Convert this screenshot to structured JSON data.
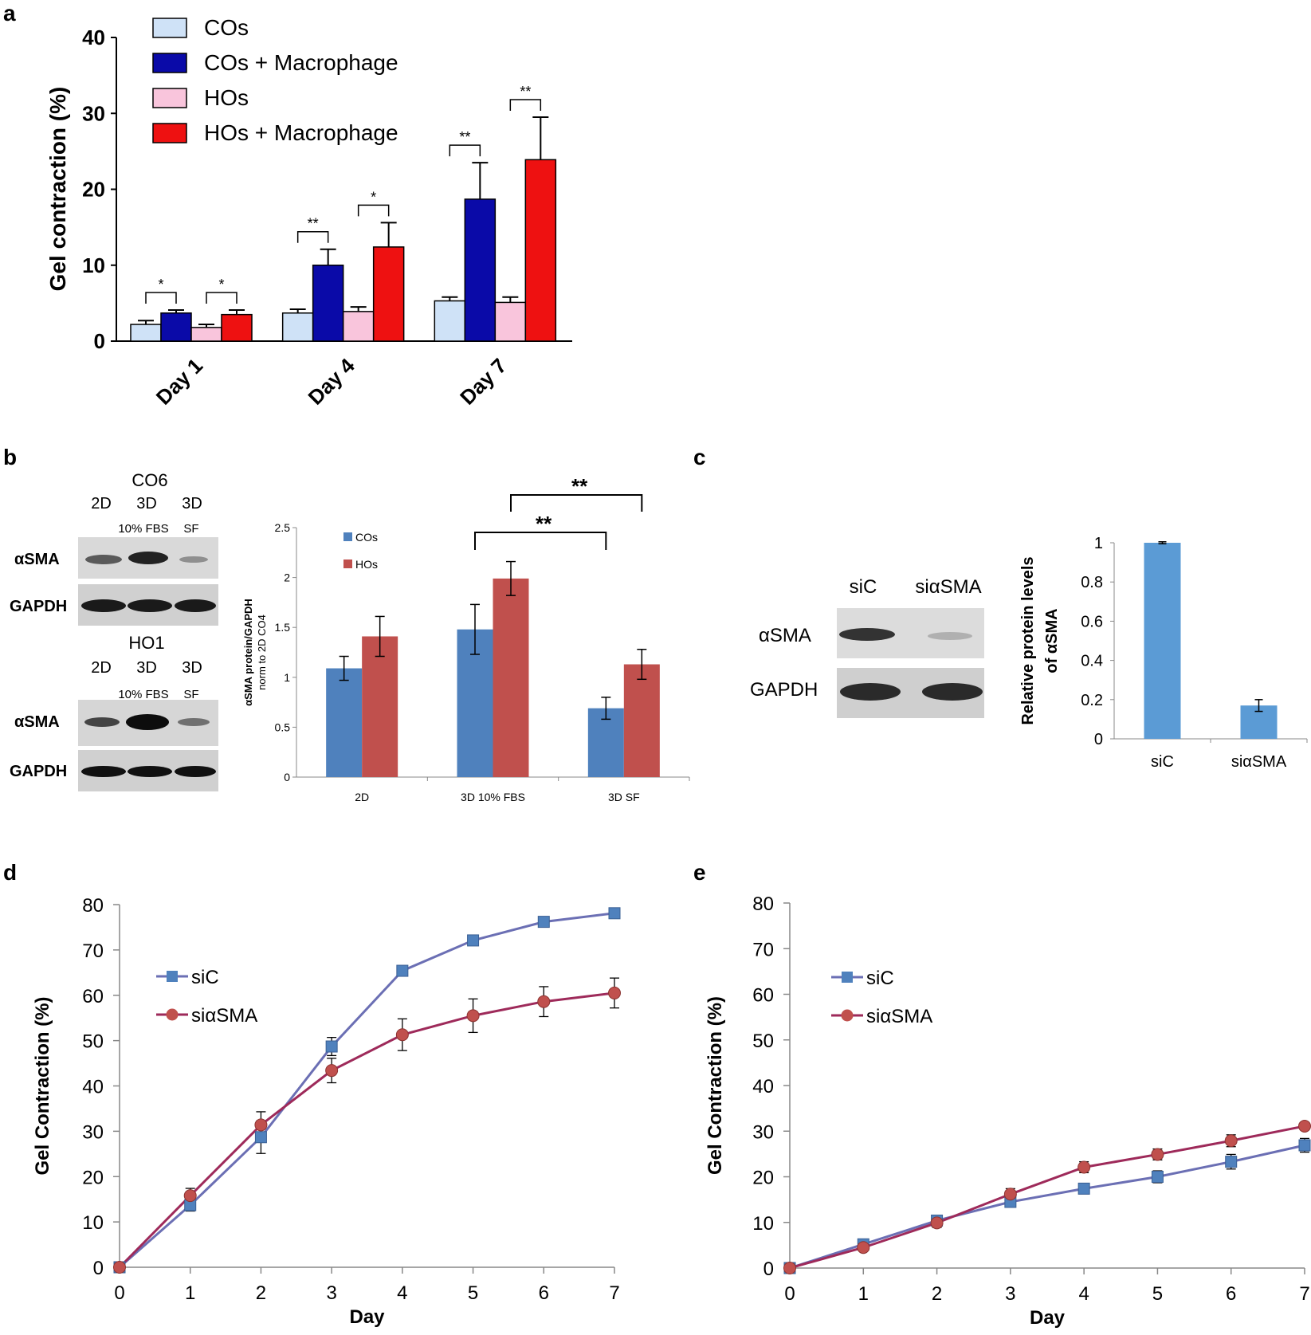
{
  "panel_labels": {
    "a": "a",
    "b": "b",
    "c": "c",
    "d": "d",
    "e": "e"
  },
  "colors": {
    "cos": "#cfe2f7",
    "cos_mac": "#0a0aa8",
    "hos": "#f9c5dc",
    "hos_mac": "#ee1111",
    "b_cos": "#4f81bd",
    "b_hos": "#c0504d",
    "c_bar": "#5b9bd5",
    "line_sic": "#6b6fb4",
    "line_sic_marker": "#4f81bd",
    "line_sia": "#9e2a5a",
    "line_sia_marker": "#c0504d"
  },
  "blots": {
    "b": {
      "panel1": {
        "title": "CO6",
        "lanes": [
          "2D",
          "3D",
          "3D"
        ],
        "sub": [
          "10% FBS",
          "SF"
        ],
        "rows": [
          "αSMA",
          "GAPDH"
        ]
      },
      "panel2": {
        "title": "HO1",
        "lanes": [
          "2D",
          "3D",
          "3D"
        ],
        "sub": [
          "10% FBS",
          "SF"
        ],
        "rows": [
          "αSMA",
          "GAPDH"
        ]
      }
    },
    "c": {
      "lanes": [
        "siC",
        "siαSMA"
      ],
      "rows": [
        "αSMA",
        "GAPDH"
      ]
    }
  },
  "chart_data": [
    {
      "panel": "a",
      "type": "bar",
      "title": "",
      "xlabel": "",
      "ylabel": "Gel contraction (%)",
      "ylim": [
        0,
        40
      ],
      "yticks": [
        "0",
        "10",
        "20",
        "30",
        "40"
      ],
      "categories": [
        "Day 1",
        "Day 4",
        "Day 7"
      ],
      "series": [
        {
          "name": "COs",
          "values": [
            2.2,
            3.7,
            5.3
          ],
          "errors": [
            0.5,
            0.5,
            0.5
          ]
        },
        {
          "name": "COs + Macrophage",
          "values": [
            3.7,
            10.0,
            18.7
          ],
          "errors": [
            0.4,
            2.1,
            4.8
          ]
        },
        {
          "name": "HOs",
          "values": [
            1.8,
            3.9,
            5.1
          ],
          "errors": [
            0.4,
            0.6,
            0.7
          ]
        },
        {
          "name": "HOs + Macrophage",
          "values": [
            3.5,
            12.4,
            23.9
          ],
          "errors": [
            0.6,
            3.2,
            5.6
          ]
        }
      ],
      "significance": [
        {
          "category": 0,
          "pair": [
            0,
            1
          ],
          "label": "*"
        },
        {
          "category": 0,
          "pair": [
            2,
            3
          ],
          "label": "*"
        },
        {
          "category": 1,
          "pair": [
            0,
            1
          ],
          "label": "**"
        },
        {
          "category": 1,
          "pair": [
            2,
            3
          ],
          "label": "*"
        },
        {
          "category": 2,
          "pair": [
            0,
            1
          ],
          "label": "**"
        },
        {
          "category": 2,
          "pair": [
            2,
            3
          ],
          "label": "**"
        }
      ]
    },
    {
      "panel": "b",
      "type": "bar",
      "ylabel": "αSMA protein/GAPDH",
      "ylabel2": "norm to 2D CO4",
      "ylim": [
        0,
        2.5
      ],
      "yticks": [
        "0",
        "0.5",
        "1",
        "1.5",
        "2",
        "2.5"
      ],
      "categories": [
        "2D",
        "3D 10% FBS",
        "3D SF"
      ],
      "series": [
        {
          "name": "COs",
          "values": [
            1.09,
            1.48,
            0.69
          ],
          "errors": [
            0.12,
            0.25,
            0.11
          ]
        },
        {
          "name": "HOs",
          "values": [
            1.41,
            1.99,
            1.13
          ],
          "errors": [
            0.2,
            0.17,
            0.15
          ]
        }
      ],
      "significance": [
        {
          "label": "**",
          "from": 1,
          "to": 2,
          "level": 2.4
        },
        {
          "label": "**",
          "from": 1,
          "to": 2,
          "level": 2.0
        }
      ]
    },
    {
      "panel": "c",
      "type": "bar",
      "ylabel": "Relative protein levels",
      "ylabel2": "of αSMA",
      "ylim": [
        0,
        1
      ],
      "yticks": [
        "0",
        "0.2",
        "0.4",
        "0.6",
        "0.8",
        "1"
      ],
      "categories": [
        "siC",
        "siαSMA"
      ],
      "values": [
        1.0,
        0.17
      ],
      "errors": [
        0.005,
        0.03
      ]
    },
    {
      "panel": "d",
      "type": "line",
      "xlabel": "Day",
      "ylabel": "Gel Contraction (%)",
      "ylim": [
        0,
        80
      ],
      "xlim": [
        0,
        7
      ],
      "yticks": [
        "0",
        "10",
        "20",
        "30",
        "40",
        "50",
        "60",
        "70",
        "80"
      ],
      "xticks": [
        "0",
        "1",
        "2",
        "3",
        "4",
        "5",
        "6",
        "7"
      ],
      "x": [
        0,
        1,
        2,
        3,
        4,
        5,
        6,
        7
      ],
      "series": [
        {
          "name": "siC",
          "values": [
            0,
            13.7,
            28.7,
            48.7,
            65.4,
            72.1,
            76.2,
            78.1
          ],
          "errors": [
            0,
            1.3,
            3.6,
            2.0,
            0.4,
            0.3,
            0.3,
            0.4
          ]
        },
        {
          "name": "siαSMA",
          "values": [
            0,
            15.8,
            31.4,
            43.4,
            51.3,
            55.5,
            58.6,
            60.5
          ],
          "errors": [
            0,
            1.6,
            2.9,
            2.7,
            3.5,
            3.7,
            3.3,
            3.3
          ]
        }
      ]
    },
    {
      "panel": "e",
      "type": "line",
      "xlabel": "Day",
      "ylabel": "Gel Contraction (%)",
      "ylim": [
        0,
        80
      ],
      "xlim": [
        0,
        7
      ],
      "yticks": [
        "0",
        "10",
        "20",
        "30",
        "40",
        "50",
        "60",
        "70",
        "80"
      ],
      "xticks": [
        "0",
        "1",
        "2",
        "3",
        "4",
        "5",
        "6",
        "7"
      ],
      "x": [
        0,
        1,
        2,
        3,
        4,
        5,
        6,
        7
      ],
      "series": [
        {
          "name": "siC",
          "values": [
            0,
            5.2,
            10.4,
            14.5,
            17.4,
            20.0,
            23.3,
            26.9
          ],
          "errors": [
            0,
            0.5,
            0.6,
            0.8,
            0.6,
            1.3,
            1.6,
            1.5
          ]
        },
        {
          "name": "siαSMA",
          "values": [
            0,
            4.5,
            9.9,
            16.2,
            22.1,
            24.9,
            27.9,
            31.1
          ],
          "errors": [
            0,
            0.5,
            1.0,
            1.2,
            1.2,
            1.2,
            1.3,
            0.8
          ]
        }
      ]
    }
  ]
}
